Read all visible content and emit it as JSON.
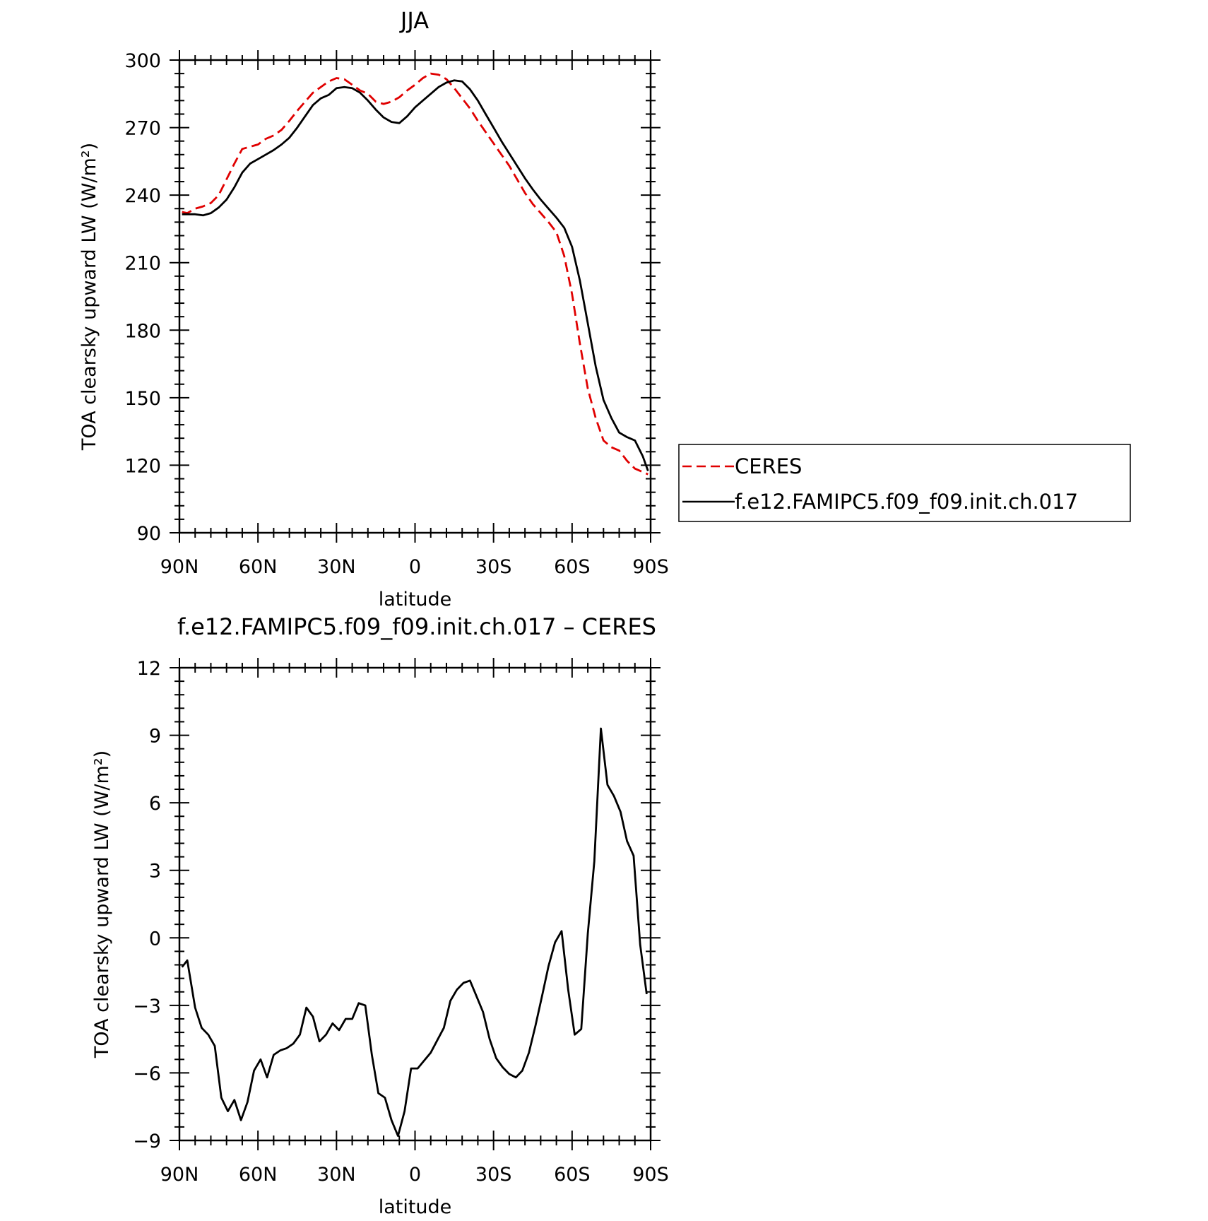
{
  "chart_data": [
    {
      "type": "line",
      "title": "JJA",
      "xlabel": "latitude",
      "ylabel": "TOA clearsky upward LW (W/m²)",
      "xlim": [
        90,
        -90
      ],
      "ylim": [
        90,
        300
      ],
      "x_ticks": [
        90,
        60,
        30,
        0,
        -30,
        -60,
        -90
      ],
      "x_tick_labels": [
        "90N",
        "60N",
        "30N",
        "0",
        "30S",
        "60S",
        "90S"
      ],
      "y_ticks": [
        90,
        120,
        150,
        180,
        210,
        240,
        270,
        300
      ],
      "y_tick_labels": [
        "90",
        "120",
        "150",
        "180",
        "210",
        "240",
        "270",
        "300"
      ],
      "legend_position": "right",
      "series": [
        {
          "name": "CERES",
          "color": "#e00000",
          "style": "dashed",
          "x": [
            89,
            87,
            84,
            81,
            78,
            75,
            72,
            69,
            66,
            63,
            60,
            57,
            54,
            51,
            48,
            45,
            42,
            39,
            36,
            33,
            30,
            27,
            24,
            21,
            18,
            15,
            12,
            9,
            6,
            3,
            0,
            -3,
            -6,
            -9,
            -12,
            -15,
            -18,
            -21,
            -24,
            -27,
            -30,
            -33,
            -36,
            -39,
            -42,
            -45,
            -48,
            -51,
            -54,
            -57,
            -60,
            -63,
            -66,
            -69,
            -72,
            -75,
            -78,
            -81,
            -84,
            -87,
            -89
          ],
          "y": [
            232.5,
            232,
            234,
            235,
            236.5,
            240,
            247,
            254,
            260.5,
            261.5,
            262.5,
            265,
            266.5,
            269,
            273,
            277.5,
            281.5,
            285.5,
            288,
            290.5,
            292,
            291.5,
            289,
            286.5,
            285,
            281.5,
            280.5,
            281.5,
            283.5,
            286.5,
            289,
            292,
            294,
            293.5,
            291.5,
            287.5,
            283,
            278.5,
            273,
            268,
            263,
            258,
            253,
            247,
            241,
            236,
            232,
            228,
            223.5,
            213,
            196,
            174,
            154,
            141,
            131,
            128,
            126.5,
            122,
            118.5,
            117,
            116
          ]
        },
        {
          "name": "f.e12.FAMIPC5.f09_f09.init.ch.017",
          "color": "#000000",
          "style": "solid",
          "x": [
            89,
            87,
            84,
            81,
            78,
            75,
            72,
            69,
            66,
            63,
            60,
            57,
            54,
            51,
            48,
            45,
            42,
            39,
            36,
            33,
            30,
            27,
            24,
            21,
            18,
            15,
            12,
            9,
            6,
            3,
            0,
            -3,
            -6,
            -9,
            -12,
            -15,
            -18,
            -21,
            -24,
            -27,
            -30,
            -33,
            -36,
            -39,
            -42,
            -45,
            -48,
            -51,
            -54,
            -57,
            -60,
            -63,
            -66,
            -69,
            -72,
            -75,
            -78,
            -81,
            -84,
            -87,
            -89
          ],
          "y": [
            231.5,
            231.5,
            231.5,
            231,
            232,
            234.5,
            238,
            243.5,
            250,
            254,
            256,
            258,
            260,
            262.5,
            265.5,
            270,
            275,
            280,
            283,
            284.5,
            287.5,
            288,
            287.5,
            285.5,
            282,
            278,
            274.5,
            272.5,
            272,
            275,
            279,
            282,
            285,
            288,
            290,
            291,
            290.5,
            287,
            282,
            276,
            270,
            264,
            258.5,
            253,
            247.5,
            242.5,
            238,
            234,
            230,
            225.5,
            217,
            202,
            183,
            164,
            149,
            141,
            134.5,
            132.5,
            131,
            124,
            117.5
          ]
        }
      ]
    },
    {
      "type": "line",
      "title": "f.e12.FAMIPC5.f09_f09.init.ch.017 – CERES",
      "xlabel": "latitude",
      "ylabel": "TOA clearsky upward LW (W/m²)",
      "xlim": [
        90,
        -90
      ],
      "ylim": [
        -9,
        12
      ],
      "x_ticks": [
        90,
        60,
        30,
        0,
        -30,
        -60,
        -90
      ],
      "x_tick_labels": [
        "90N",
        "60N",
        "30N",
        "0",
        "30S",
        "60S",
        "90S"
      ],
      "y_ticks": [
        -9,
        -6,
        -3,
        0,
        3,
        6,
        9,
        12
      ],
      "y_tick_labels": [
        "−9",
        "−6",
        "−3",
        "0",
        "3",
        "6",
        "9",
        "12"
      ],
      "series": [
        {
          "color": "#000000",
          "style": "solid",
          "x": [
            89,
            87,
            84,
            81.5,
            79,
            76.5,
            74,
            71.5,
            69,
            66.5,
            64,
            61.5,
            59,
            56.5,
            54,
            51.5,
            49,
            46.5,
            44,
            41.5,
            39,
            36.5,
            34,
            31.5,
            29,
            26.5,
            24,
            21.5,
            19,
            16.5,
            14,
            11.5,
            9,
            6.5,
            4,
            1.5,
            -1,
            -3.5,
            -6,
            -8.5,
            -11,
            -13.5,
            -16,
            -18.5,
            -21,
            -23.5,
            -26,
            -28.5,
            -31,
            -33.5,
            -36,
            -38.5,
            -41,
            -43.5,
            -46,
            -48.5,
            -51,
            -53.5,
            -56,
            -58.5,
            -61,
            -63.5,
            -66,
            -68.5,
            -71,
            -73.5,
            -76,
            -78.5,
            -81,
            -83.5,
            -86,
            -88.5
          ],
          "y": [
            -1.3,
            -1,
            -3.1,
            -4,
            -4.3,
            -4.8,
            -7.1,
            -7.7,
            -7.2,
            -8.1,
            -7.3,
            -5.9,
            -5.4,
            -6.2,
            -5.2,
            -5,
            -4.9,
            -4.7,
            -4.3,
            -3.1,
            -3.5,
            -4.6,
            -4.3,
            -3.8,
            -4.1,
            -3.6,
            -3.6,
            -2.9,
            -3,
            -5.2,
            -6.9,
            -7.1,
            -8.1,
            -8.8,
            -7.7,
            -5.8,
            -5.8,
            -5.45,
            -5.1,
            -4.55,
            -4,
            -2.8,
            -2.3,
            -2,
            -1.9,
            -2.6,
            -3.3,
            -4.5,
            -5.35,
            -5.75,
            -6.05,
            -6.2,
            -5.9,
            -5.1,
            -3.9,
            -2.6,
            -1.25,
            -0.2,
            0.3,
            -2.3,
            -4.3,
            -4.05,
            0.2,
            3.4,
            9.3,
            6.8,
            6.3,
            5.6,
            4.3,
            3.65,
            -0.3,
            -2.5
          ]
        }
      ]
    }
  ]
}
